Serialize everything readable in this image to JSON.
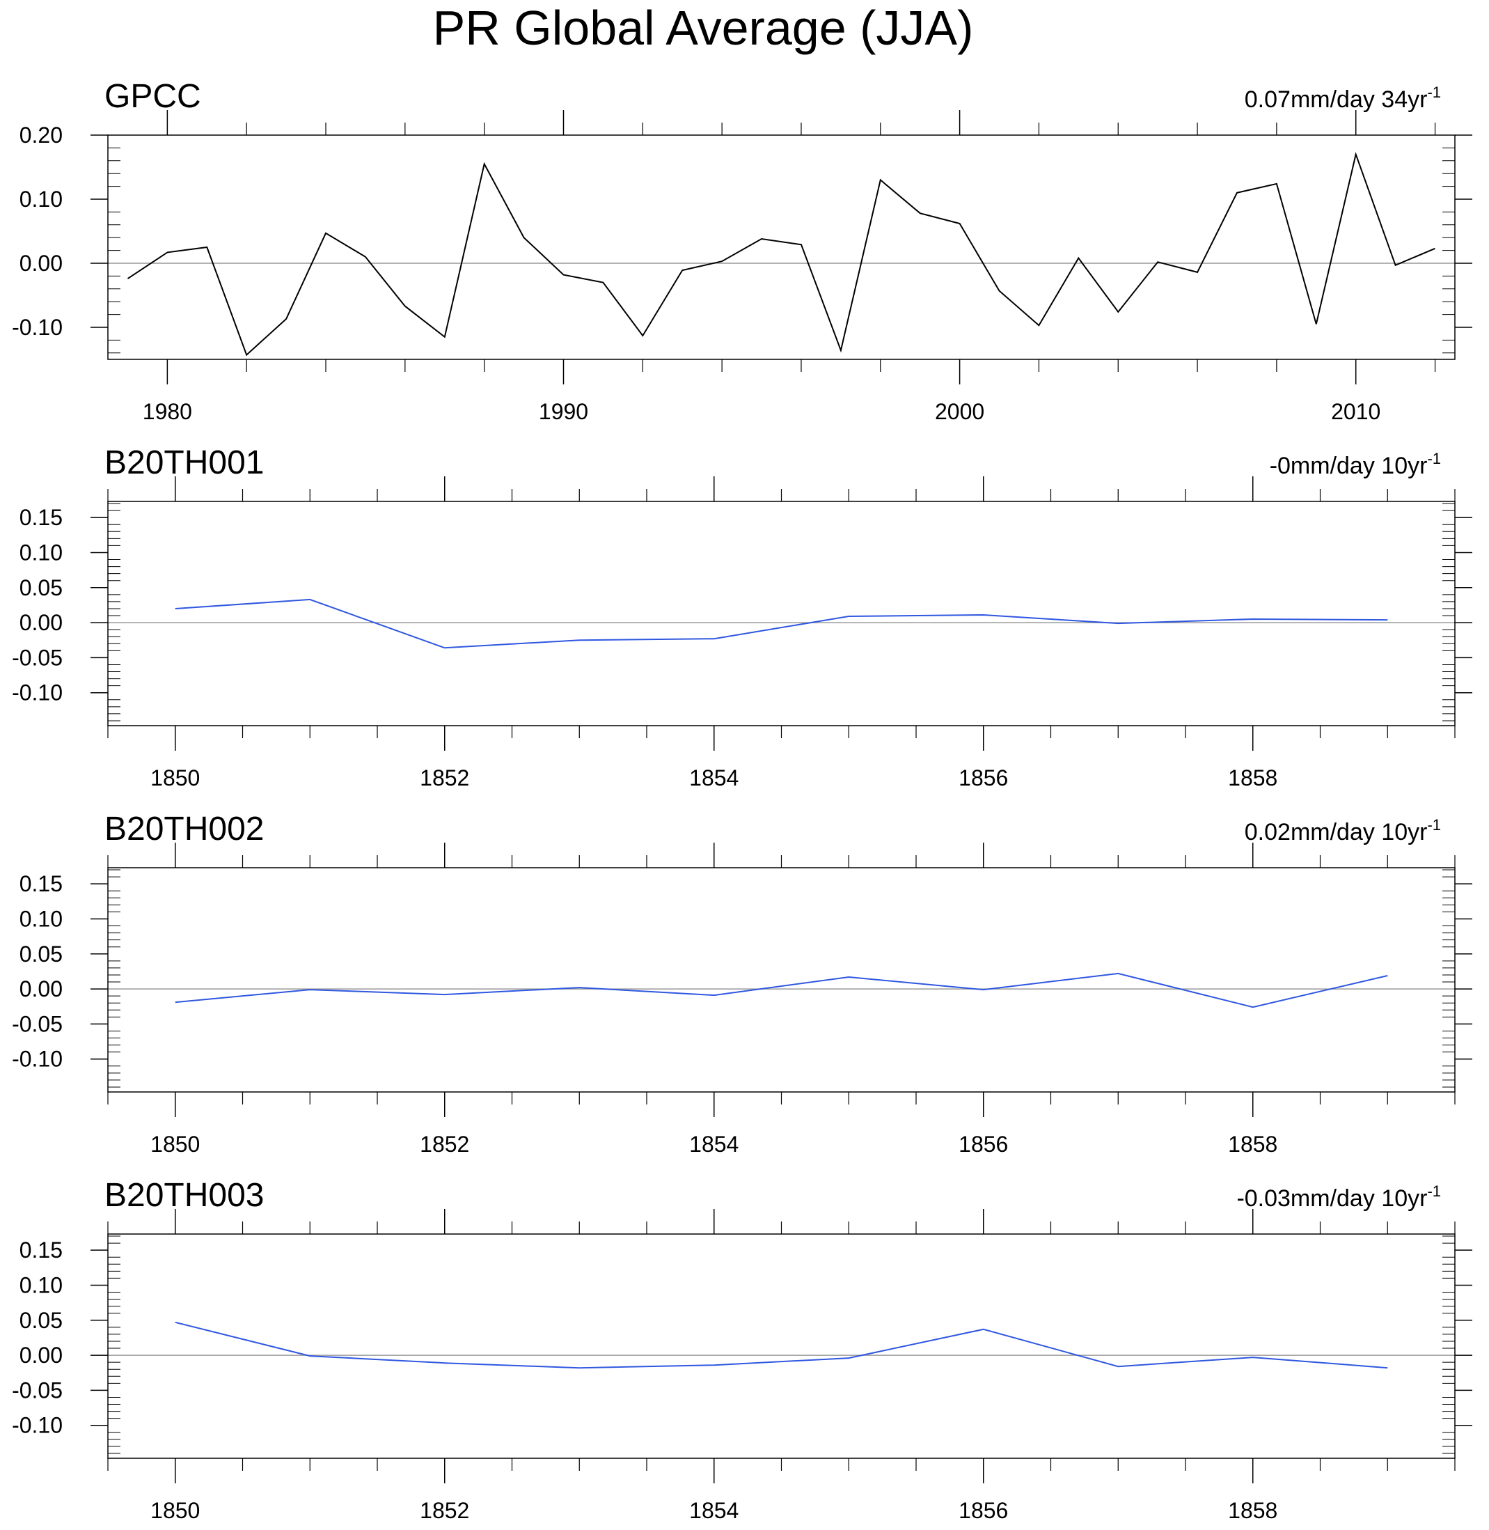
{
  "figure_title": "PR Global Average (JJA)",
  "colors": {
    "observed_line": "#000000",
    "model_line": "#2f57e0",
    "zero_line": "#999999",
    "axis": "#000000"
  },
  "chart_data": [
    {
      "type": "line",
      "title": "GPCC",
      "trend": {
        "value": "0.07mm/day 34yr",
        "exponent": "-1"
      },
      "color": "#000000",
      "xlim": [
        1978.5,
        2012.5
      ],
      "ylim": [
        -0.15,
        0.2
      ],
      "yticks": [
        {
          "value": 0.2,
          "label": "0.20"
        },
        {
          "value": 0.1,
          "label": "0.10"
        },
        {
          "value": 0.0,
          "label": "0.00"
        },
        {
          "value": -0.1,
          "label": "-0.10"
        }
      ],
      "xticks": [
        {
          "value": 1980,
          "label": "1980"
        },
        {
          "value": 1990,
          "label": "1990"
        },
        {
          "value": 2000,
          "label": "2000"
        },
        {
          "value": 2010,
          "label": "2010"
        }
      ],
      "x_minor_step": 2,
      "y_minor_step": 0.02,
      "x": [
        1979,
        1980,
        1981,
        1982,
        1983,
        1984,
        1985,
        1986,
        1987,
        1988,
        1989,
        1990,
        1991,
        1992,
        1993,
        1994,
        1995,
        1996,
        1997,
        1998,
        1999,
        2000,
        2001,
        2002,
        2003,
        2004,
        2005,
        2006,
        2007,
        2008,
        2009,
        2010,
        2011,
        2012
      ],
      "values": [
        -0.024,
        0.017,
        0.025,
        -0.143,
        -0.087,
        0.047,
        0.01,
        -0.067,
        -0.115,
        0.155,
        0.04,
        -0.018,
        -0.03,
        -0.113,
        -0.011,
        0.003,
        0.038,
        0.029,
        -0.136,
        0.13,
        0.078,
        0.062,
        -0.043,
        -0.097,
        0.008,
        -0.076,
        0.002,
        -0.014,
        0.11,
        0.124,
        -0.095,
        0.17,
        -0.003,
        0.023
      ]
    },
    {
      "type": "line",
      "title": "B20TH001",
      "trend": {
        "value": "-0mm/day 10yr",
        "exponent": "-1"
      },
      "color": "#2f57e0",
      "xlim": [
        1849.5,
        1859.5
      ],
      "ylim": [
        -0.147,
        0.173
      ],
      "yticks": [
        {
          "value": 0.15,
          "label": "0.15"
        },
        {
          "value": 0.1,
          "label": "0.10"
        },
        {
          "value": 0.05,
          "label": "0.05"
        },
        {
          "value": 0.0,
          "label": "0.00"
        },
        {
          "value": -0.05,
          "label": "-0.05"
        },
        {
          "value": -0.1,
          "label": "-0.10"
        }
      ],
      "xticks": [
        {
          "value": 1850,
          "label": "1850"
        },
        {
          "value": 1852,
          "label": "1852"
        },
        {
          "value": 1854,
          "label": "1854"
        },
        {
          "value": 1856,
          "label": "1856"
        },
        {
          "value": 1858,
          "label": "1858"
        }
      ],
      "x_minor_step": 0.5,
      "y_minor_step": 0.01,
      "x": [
        1850,
        1851,
        1852,
        1853,
        1854,
        1855,
        1856,
        1857,
        1858,
        1859
      ],
      "values": [
        0.02,
        0.033,
        -0.036,
        -0.025,
        -0.023,
        0.009,
        0.011,
        -0.001,
        0.005,
        0.004
      ]
    },
    {
      "type": "line",
      "title": "B20TH002",
      "trend": {
        "value": "0.02mm/day 10yr",
        "exponent": "-1"
      },
      "color": "#2f57e0",
      "xlim": [
        1849.5,
        1859.5
      ],
      "ylim": [
        -0.147,
        0.173
      ],
      "yticks": [
        {
          "value": 0.15,
          "label": "0.15"
        },
        {
          "value": 0.1,
          "label": "0.10"
        },
        {
          "value": 0.05,
          "label": "0.05"
        },
        {
          "value": 0.0,
          "label": "0.00"
        },
        {
          "value": -0.05,
          "label": "-0.05"
        },
        {
          "value": -0.1,
          "label": "-0.10"
        }
      ],
      "xticks": [
        {
          "value": 1850,
          "label": "1850"
        },
        {
          "value": 1852,
          "label": "1852"
        },
        {
          "value": 1854,
          "label": "1854"
        },
        {
          "value": 1856,
          "label": "1856"
        },
        {
          "value": 1858,
          "label": "1858"
        }
      ],
      "x_minor_step": 0.5,
      "y_minor_step": 0.01,
      "x": [
        1850,
        1851,
        1852,
        1853,
        1854,
        1855,
        1856,
        1857,
        1858,
        1859
      ],
      "values": [
        -0.019,
        -0.001,
        -0.008,
        0.002,
        -0.009,
        0.017,
        -0.001,
        0.022,
        -0.026,
        0.019
      ]
    },
    {
      "type": "line",
      "title": "B20TH003",
      "trend": {
        "value": "-0.03mm/day 10yr",
        "exponent": "-1"
      },
      "color": "#2f57e0",
      "xlim": [
        1849.5,
        1859.5
      ],
      "ylim": [
        -0.147,
        0.173
      ],
      "yticks": [
        {
          "value": 0.15,
          "label": "0.15"
        },
        {
          "value": 0.1,
          "label": "0.10"
        },
        {
          "value": 0.05,
          "label": "0.05"
        },
        {
          "value": 0.0,
          "label": "0.00"
        },
        {
          "value": -0.05,
          "label": "-0.05"
        },
        {
          "value": -0.1,
          "label": "-0.10"
        }
      ],
      "xticks": [
        {
          "value": 1850,
          "label": "1850"
        },
        {
          "value": 1852,
          "label": "1852"
        },
        {
          "value": 1854,
          "label": "1854"
        },
        {
          "value": 1856,
          "label": "1856"
        },
        {
          "value": 1858,
          "label": "1858"
        }
      ],
      "x_minor_step": 0.5,
      "y_minor_step": 0.01,
      "x": [
        1850,
        1851,
        1852,
        1853,
        1854,
        1855,
        1856,
        1857,
        1858,
        1859
      ],
      "values": [
        0.047,
        -0.001,
        -0.011,
        -0.018,
        -0.014,
        -0.004,
        0.037,
        -0.016,
        -0.003,
        -0.018
      ]
    }
  ]
}
